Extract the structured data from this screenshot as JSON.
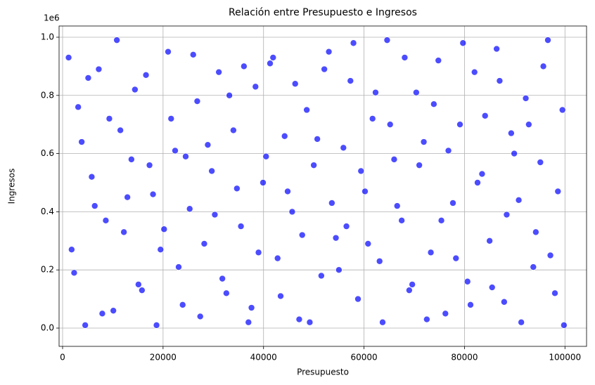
{
  "chart_data": {
    "type": "scatter",
    "title": "Relación entre Presupuesto e Ingresos",
    "xlabel": "Presupuesto",
    "ylabel": "Ingresos",
    "y_offset_label": "1e6",
    "color": "#0000ff",
    "grid": true,
    "xlim": [
      -700,
      104300
    ],
    "xticks": [
      0,
      20000,
      40000,
      60000,
      80000,
      100000
    ],
    "ylim": [
      -62800,
      1038600
    ],
    "yticks": [
      {
        "value": 0,
        "label": "0.0"
      },
      {
        "value": 200000,
        "label": "0.2"
      },
      {
        "value": 400000,
        "label": "0.4"
      },
      {
        "value": 600000,
        "label": "0.6"
      },
      {
        "value": 800000,
        "label": "0.8"
      },
      {
        "value": 1000000,
        "label": "1.0"
      }
    ],
    "x": [
      1200,
      2300,
      3800,
      5100,
      6400,
      7900,
      9300,
      10800,
      12200,
      13700,
      15100,
      16600,
      18000,
      19500,
      21000,
      22400,
      23900,
      25300,
      26800,
      28200,
      29700,
      31100,
      32600,
      34000,
      35500,
      37000,
      38400,
      39900,
      41300,
      42800,
      44200,
      45700,
      47100,
      48600,
      50000,
      51500,
      53000,
      54400,
      55900,
      57300,
      58800,
      60200,
      61700,
      63100,
      64600,
      66000,
      67500,
      69000,
      70400,
      71900,
      73300,
      74800,
      76200,
      77700,
      79100,
      80600,
      82000,
      83500,
      85000,
      86400,
      87900,
      89300,
      90800,
      92200,
      93700,
      95100,
      96600,
      98000,
      99500,
      1800,
      3100,
      4500,
      5800,
      7200,
      8600,
      10100,
      11500,
      12900,
      14400,
      15800,
      17300,
      18700,
      20200,
      21600,
      23100,
      24500,
      26000,
      27400,
      28900,
      30300,
      31800,
      33200,
      34700,
      36100,
      37600,
      39000,
      40500,
      41900,
      43400,
      44800,
      46300,
      47700,
      49200,
      50700,
      52100,
      53600,
      55000,
      56500,
      57900,
      59400,
      60800,
      62300,
      63700,
      65200,
      66600,
      68100,
      69600,
      71000,
      72500,
      73900,
      75400,
      76800,
      78300,
      79700,
      81200,
      82600,
      84100,
      85500,
      87000,
      88400,
      89900,
      91300,
      92800,
      94200,
      95700,
      97100,
      98600,
      99800
    ],
    "values": [
      930000,
      190000,
      640000,
      860000,
      420000,
      50000,
      720000,
      990000,
      330000,
      580000,
      150000,
      870000,
      460000,
      270000,
      950000,
      610000,
      80000,
      410000,
      780000,
      290000,
      540000,
      880000,
      120000,
      680000,
      350000,
      20000,
      830000,
      500000,
      910000,
      240000,
      660000,
      400000,
      30000,
      750000,
      560000,
      180000,
      950000,
      310000,
      620000,
      850000,
      100000,
      470000,
      720000,
      230000,
      990000,
      580000,
      370000,
      130000,
      810000,
      640000,
      260000,
      920000,
      50000,
      430000,
      700000,
      160000,
      880000,
      530000,
      300000,
      960000,
      90000,
      670000,
      440000,
      790000,
      210000,
      570000,
      990000,
      120000,
      750000,
      270000,
      760000,
      10000,
      520000,
      890000,
      370000,
      60000,
      680000,
      450000,
      820000,
      130000,
      560000,
      10000,
      340000,
      720000,
      210000,
      590000,
      940000,
      40000,
      630000,
      390000,
      170000,
      800000,
      480000,
      900000,
      70000,
      260000,
      590000,
      930000,
      110000,
      470000,
      840000,
      320000,
      20000,
      650000,
      890000,
      430000,
      200000,
      350000,
      980000,
      540000,
      290000,
      810000,
      20000,
      700000,
      420000,
      930000,
      150000,
      560000,
      30000,
      770000,
      370000,
      610000,
      240000,
      980000,
      80000,
      500000,
      730000,
      140000,
      850000,
      390000,
      600000,
      20000,
      700000,
      330000,
      900000,
      250000,
      470000,
      10000
    ]
  }
}
